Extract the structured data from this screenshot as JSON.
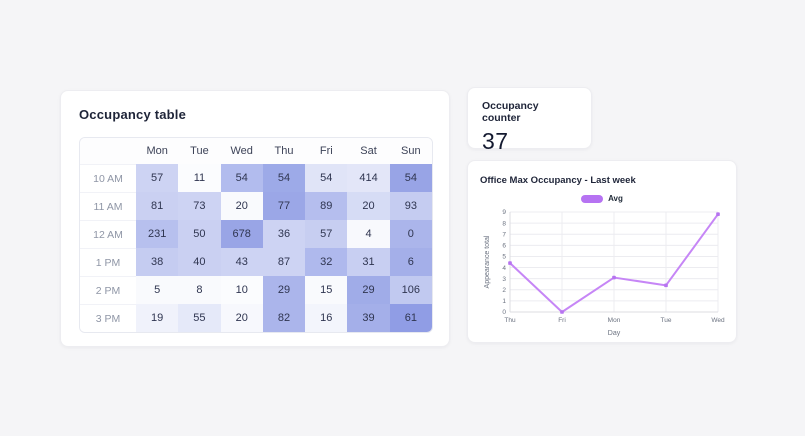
{
  "occupancy_table": {
    "title": "Occupancy table",
    "columns": [
      "Mon",
      "Tue",
      "Wed",
      "Thu",
      "Fri",
      "Sat",
      "Sun"
    ],
    "rows": [
      {
        "label": "10 AM",
        "values": [
          "57",
          "11",
          "54",
          "54",
          "54",
          "414",
          "54"
        ],
        "colors": [
          "#cdd3f3",
          "#fbfcfe",
          "#b2bcee",
          "#9daae8",
          "#e0e4f7",
          "#e3e6f8",
          "#98a4e6"
        ]
      },
      {
        "label": "11 AM",
        "values": [
          "81",
          "73",
          "20",
          "77",
          "89",
          "20",
          "93"
        ],
        "colors": [
          "#cad0f2",
          "#cdd3f3",
          "#f9fafd",
          "#9ba7e7",
          "#b5beee",
          "#d6dcf5",
          "#c5ccf1"
        ]
      },
      {
        "label": "12 AM",
        "values": [
          "231",
          "50",
          "678",
          "36",
          "57",
          "4",
          "0"
        ],
        "colors": [
          "#b7c0ee",
          "#cad0f2",
          "#99a5e6",
          "#cdd3f3",
          "#c7cef1",
          "#f8f9fd",
          "#abb5eb"
        ]
      },
      {
        "label": "1 PM",
        "values": [
          "38",
          "40",
          "43",
          "87",
          "32",
          "31",
          "6"
        ],
        "colors": [
          "#c5ccf1",
          "#cad0f2",
          "#cdd3f3",
          "#cdd3f3",
          "#afb9ed",
          "#c8cff2",
          "#a4afe9"
        ]
      },
      {
        "label": "2 PM",
        "values": [
          "5",
          "8",
          "10",
          "29",
          "15",
          "29",
          "106"
        ],
        "colors": [
          "#f9fafd",
          "#f9fafd",
          "#fbfcfe",
          "#abb5eb",
          "#f9fafd",
          "#a0ace8",
          "#c1c9f0"
        ]
      },
      {
        "label": "3 PM",
        "values": [
          "19",
          "55",
          "20",
          "82",
          "16",
          "39",
          "61"
        ],
        "colors": [
          "#f0f2fb",
          "#e5e9f9",
          "#f7f8fd",
          "#abb5eb",
          "#f3f5fc",
          "#a4afe9",
          "#909de5"
        ]
      }
    ]
  },
  "occupancy_counter": {
    "title": "Occupancy counter",
    "value": "37"
  },
  "chart_data": {
    "type": "line",
    "title": "Office Max Occupancy - Last week",
    "x": [
      "Thu",
      "Fri",
      "Mon",
      "Tue",
      "Wed"
    ],
    "series": [
      {
        "name": "Avg",
        "color": "#c686f6",
        "point_color": "#b673f0",
        "values": [
          4.4,
          0,
          3.1,
          2.4,
          8.8
        ]
      }
    ],
    "xlabel": "Day",
    "ylabel": "Appearance total",
    "ylim": [
      0,
      9
    ],
    "yticks": [
      0,
      1,
      2,
      3,
      4,
      5,
      6,
      7,
      8,
      9
    ],
    "grid": true,
    "legend_position": "top-center",
    "colors": {
      "grid": "#ececf0",
      "axis": "#dcdce2",
      "legend_pill": "#b673f2"
    }
  }
}
